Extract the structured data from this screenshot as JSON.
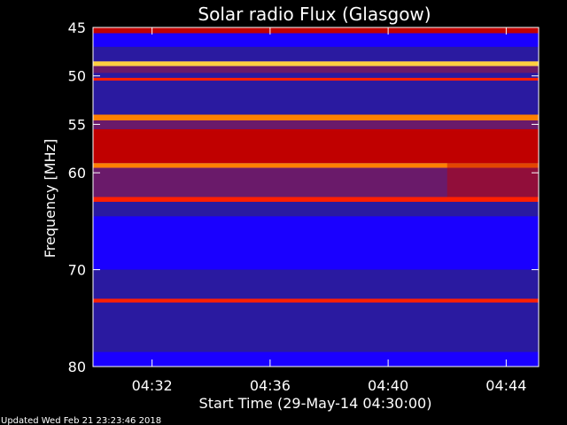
{
  "chart_data": {
    "type": "heatmap",
    "title": "Solar radio Flux (Glasgow)",
    "ylabel": "Frequency [MHz]",
    "xlabel": "Start Time (29-May-14 04:30:00)",
    "footer": "Updated Wed Feb 21 23:23:46 2018",
    "x_unit": "minutes after 04:30:00",
    "xlim": [
      0,
      15.1
    ],
    "ylim": [
      45,
      80
    ],
    "x_ticks": [
      {
        "value": 2,
        "label": "04:32"
      },
      {
        "value": 6,
        "label": "04:36"
      },
      {
        "value": 10,
        "label": "04:40"
      },
      {
        "value": 14,
        "label": "04:44"
      }
    ],
    "y_ticks": [
      {
        "value": 45,
        "label": "45"
      },
      {
        "value": 50,
        "label": "50"
      },
      {
        "value": 55,
        "label": "55"
      },
      {
        "value": 60,
        "label": "60"
      },
      {
        "value": 70,
        "label": "70"
      },
      {
        "value": 80,
        "label": "80"
      }
    ],
    "colormap": [
      "#1a00ff",
      "#2a1aa0",
      "#6a1a6a",
      "#c00000",
      "#ff2000",
      "#ff8000",
      "#ffd040",
      "#ffffe0"
    ],
    "frequency_bands": [
      {
        "from": 45.0,
        "to": 45.6,
        "level": 3
      },
      {
        "from": 45.6,
        "to": 47.0,
        "level": 0
      },
      {
        "from": 47.0,
        "to": 48.5,
        "level": 1
      },
      {
        "from": 48.5,
        "to": 49.0,
        "level": 6
      },
      {
        "from": 49.0,
        "to": 49.7,
        "level": 2
      },
      {
        "from": 49.7,
        "to": 50.2,
        "level": 1
      },
      {
        "from": 50.2,
        "to": 50.5,
        "level": 4
      },
      {
        "from": 50.5,
        "to": 54.0,
        "level": 1
      },
      {
        "from": 54.0,
        "to": 54.6,
        "level": 5
      },
      {
        "from": 54.6,
        "to": 55.5,
        "level": 2
      },
      {
        "from": 55.5,
        "to": 59.0,
        "level": 3
      },
      {
        "from": 59.0,
        "to": 59.5,
        "level": 5
      },
      {
        "from": 59.5,
        "to": 62.5,
        "level": 2
      },
      {
        "from": 62.5,
        "to": 63.0,
        "level": 4
      },
      {
        "from": 63.0,
        "to": 64.5,
        "level": 1
      },
      {
        "from": 64.5,
        "to": 70.0,
        "level": 0
      },
      {
        "from": 70.0,
        "to": 73.0,
        "level": 1
      },
      {
        "from": 73.0,
        "to": 73.4,
        "level": 4
      },
      {
        "from": 73.4,
        "to": 78.5,
        "level": 1
      },
      {
        "from": 78.5,
        "to": 80.0,
        "level": 0
      }
    ],
    "enhanced_region": {
      "x_from": 12.0,
      "x_to": 15.1,
      "y_from": 55.5,
      "y_to": 62.5,
      "level": 3
    }
  }
}
